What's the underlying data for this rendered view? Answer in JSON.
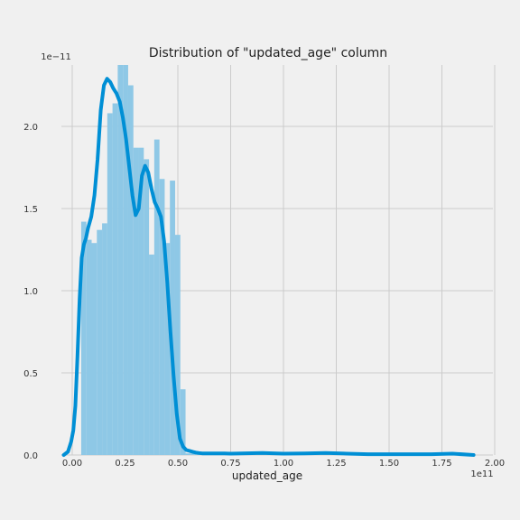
{
  "chart_data": {
    "type": "histogram",
    "title": "Distribution of \"updated_age\" column",
    "xlabel": "updated_age",
    "ylabel": "",
    "x_scale_label": "1e11",
    "y_scale_label": "1e−11",
    "xlim": [
      -0.1,
      2.0
    ],
    "ylim": [
      0,
      2.38
    ],
    "xticks": [
      {
        "value": 0.0,
        "label": "0.00"
      },
      {
        "value": 0.25,
        "label": "0.25"
      },
      {
        "value": 0.5,
        "label": "0.50"
      },
      {
        "value": 0.75,
        "label": "0.75"
      },
      {
        "value": 1.0,
        "label": "1.00"
      },
      {
        "value": 1.25,
        "label": "1.25"
      },
      {
        "value": 1.5,
        "label": "1.50"
      },
      {
        "value": 1.75,
        "label": "1.75"
      },
      {
        "value": 2.0,
        "label": "2.00"
      }
    ],
    "yticks": [
      {
        "value": 0.0,
        "label": "0.0"
      },
      {
        "value": 0.5,
        "label": "0.5"
      },
      {
        "value": 1.0,
        "label": "1.0"
      },
      {
        "value": 1.5,
        "label": "1.5"
      },
      {
        "value": 2.0,
        "label": "2.0"
      }
    ],
    "bin_width": 0.0247,
    "bins": [
      {
        "x": 0.0425,
        "value": 1.42
      },
      {
        "x": 0.0672,
        "value": 1.31
      },
      {
        "x": 0.0919,
        "value": 1.29
      },
      {
        "x": 0.1166,
        "value": 1.37
      },
      {
        "x": 0.1413,
        "value": 1.41
      },
      {
        "x": 0.166,
        "value": 2.08
      },
      {
        "x": 0.1907,
        "value": 2.14
      },
      {
        "x": 0.2154,
        "value": 2.38
      },
      {
        "x": 0.2401,
        "value": 2.38
      },
      {
        "x": 0.2648,
        "value": 2.25
      },
      {
        "x": 0.2895,
        "value": 1.87
      },
      {
        "x": 0.3142,
        "value": 1.87
      },
      {
        "x": 0.3389,
        "value": 1.8
      },
      {
        "x": 0.3636,
        "value": 1.22
      },
      {
        "x": 0.3883,
        "value": 1.92
      },
      {
        "x": 0.413,
        "value": 1.68
      },
      {
        "x": 0.4377,
        "value": 1.29
      },
      {
        "x": 0.4624,
        "value": 1.67
      },
      {
        "x": 0.4871,
        "value": 1.34
      },
      {
        "x": 0.5118,
        "value": 0.4
      },
      {
        "x": 0.5365,
        "value": 0.01
      },
      {
        "x": 0.5612,
        "value": 0.01
      },
      {
        "x": 0.5859,
        "value": 0.005
      },
      {
        "x": 0.6106,
        "value": 0.005
      }
    ],
    "kde": {
      "x": [
        -0.04,
        -0.02,
        -0.005,
        0.005,
        0.015,
        0.025,
        0.035,
        0.045,
        0.055,
        0.065,
        0.075,
        0.09,
        0.105,
        0.12,
        0.135,
        0.15,
        0.165,
        0.18,
        0.195,
        0.21,
        0.225,
        0.24,
        0.255,
        0.27,
        0.285,
        0.3,
        0.315,
        0.33,
        0.345,
        0.36,
        0.375,
        0.39,
        0.405,
        0.42,
        0.435,
        0.45,
        0.465,
        0.48,
        0.495,
        0.51,
        0.525,
        0.54,
        0.555,
        0.57,
        0.585,
        0.6,
        0.615,
        0.63,
        0.645,
        0.66,
        0.675,
        0.69,
        0.705,
        0.72,
        0.75,
        0.8,
        0.9,
        1.0,
        1.1,
        1.2,
        1.3,
        1.4,
        1.5,
        1.6,
        1.7,
        1.8,
        1.9
      ],
      "y": [
        0.0,
        0.02,
        0.08,
        0.15,
        0.3,
        0.6,
        0.95,
        1.2,
        1.28,
        1.32,
        1.38,
        1.45,
        1.58,
        1.8,
        2.1,
        2.25,
        2.29,
        2.27,
        2.23,
        2.2,
        2.15,
        2.05,
        1.92,
        1.75,
        1.58,
        1.46,
        1.5,
        1.7,
        1.76,
        1.72,
        1.62,
        1.54,
        1.5,
        1.45,
        1.3,
        1.05,
        0.75,
        0.48,
        0.25,
        0.1,
        0.05,
        0.03,
        0.025,
        0.02,
        0.015,
        0.012,
        0.01,
        0.01,
        0.01,
        0.01,
        0.01,
        0.01,
        0.01,
        0.01,
        0.008,
        0.01,
        0.012,
        0.008,
        0.01,
        0.012,
        0.008,
        0.005,
        0.005,
        0.005,
        0.005,
        0.008,
        0.0
      ]
    },
    "colors": {
      "bar": "#8ec8e6",
      "line": "#008fd5",
      "grid": "#cbcbcb",
      "background": "#f0f0f0"
    },
    "grid": true,
    "legend": "none"
  }
}
